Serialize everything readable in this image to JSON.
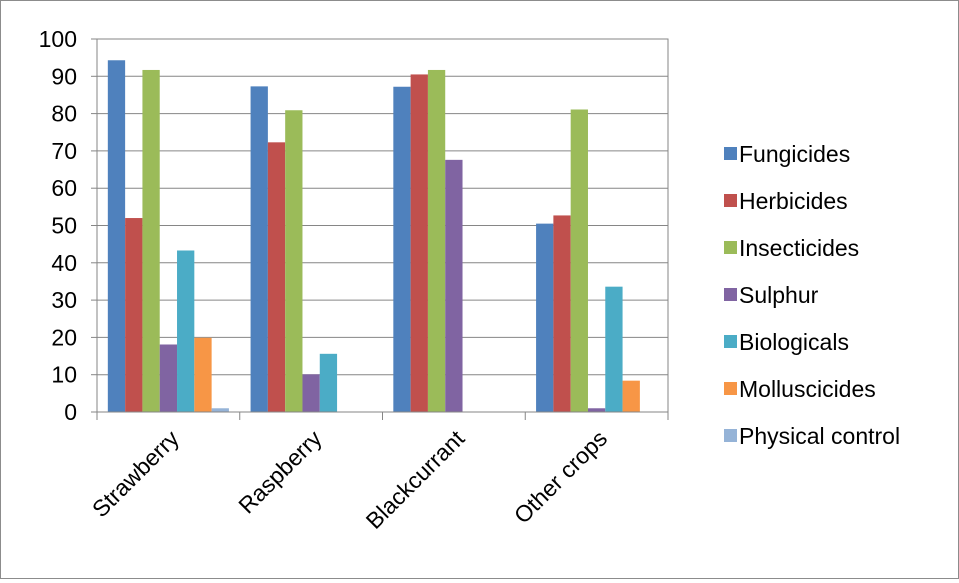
{
  "chart_data": {
    "type": "bar",
    "title": "",
    "xlabel": "",
    "ylabel": "",
    "ylim": [
      0,
      100
    ],
    "yticks": [
      0,
      10,
      20,
      30,
      40,
      50,
      60,
      70,
      80,
      90,
      100
    ],
    "grid": true,
    "legend_position": "right",
    "categories": [
      "Strawberry",
      "Raspberry",
      "Blackcurrant",
      "Other crops"
    ],
    "series": [
      {
        "name": "Fungicides",
        "color": "#4F81BD",
        "values": [
          94.3,
          87.3,
          87.2,
          50.5
        ]
      },
      {
        "name": "Herbicides",
        "color": "#C0504D",
        "values": [
          52.0,
          72.3,
          90.5,
          52.7
        ]
      },
      {
        "name": "Insecticides",
        "color": "#9BBB59",
        "values": [
          91.7,
          80.9,
          91.7,
          81.1
        ]
      },
      {
        "name": "Sulphur",
        "color": "#8064A2",
        "values": [
          18.1,
          10.1,
          67.6,
          1.0
        ]
      },
      {
        "name": "Biologicals",
        "color": "#4BACC6",
        "values": [
          43.3,
          15.6,
          0,
          33.6
        ]
      },
      {
        "name": "Molluscicides",
        "color": "#F79646",
        "values": [
          19.9,
          0,
          0,
          8.4
        ]
      },
      {
        "name": "Physical control",
        "color": "#95B3D7",
        "values": [
          1.0,
          0,
          0,
          0
        ]
      }
    ]
  }
}
